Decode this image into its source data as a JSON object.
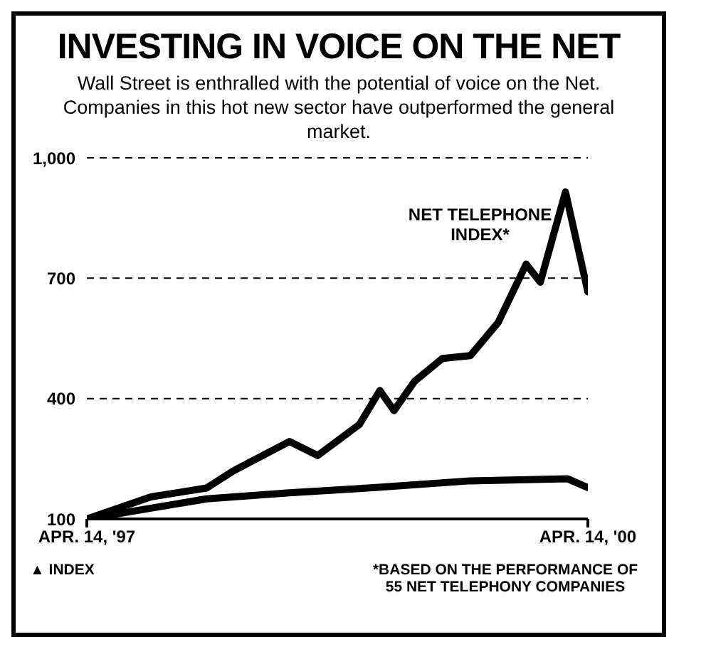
{
  "chart_data": {
    "type": "line",
    "title": "INVESTING IN VOICE ON THE NET",
    "subtitle": "Wall Street is enthralled with the potential of voice on the Net. Companies in this hot new sector have outperformed the general market.",
    "annotations": [
      "▲ INDEX",
      "*BASED ON THE PERFORMANCE OF 55 NET TELEPHONY COMPANIES"
    ],
    "series": [
      {
        "name": "NET TELEPHONE INDEX*",
        "color": "#000000",
        "x": [
          "1997-04-14",
          "1997-09-01",
          "1998-01-01",
          "1998-03-01",
          "1998-07-01",
          "1998-09-01",
          "1998-12-01",
          "1999-01-15",
          "1999-02-15",
          "1999-04-01",
          "1999-06-01",
          "1999-08-01",
          "1999-10-01",
          "1999-12-01",
          "2000-01-01",
          "2000-02-25",
          "2000-04-14"
        ],
        "values": [
          100,
          155,
          177,
          220,
          293,
          258,
          335,
          420,
          370,
          443,
          500,
          507,
          590,
          735,
          690,
          915,
          666
        ]
      },
      {
        "color": "#000000",
        "x": [
          "1997-04-14",
          "1998-01-01",
          "1998-07-01",
          "1999-01-01",
          "1999-08-01",
          "2000-03-01",
          "2000-04-14"
        ],
        "values": [
          100,
          150,
          165,
          178,
          195,
          200,
          178
        ]
      }
    ],
    "xlim": [
      "1997-04-14",
      "2000-04-14"
    ],
    "xticks": [
      {
        "value": "1997-04-14",
        "label": "APR. 14, '97"
      },
      {
        "value": "2000-04-14",
        "label": "APR. 14, '00"
      }
    ],
    "ylim": [
      100,
      1000
    ],
    "yticks": [
      100,
      400,
      700,
      {
        "value": 1000,
        "label": "1,000"
      }
    ],
    "grid": "y",
    "legend": false,
    "line_style": "solid",
    "marker": "none"
  }
}
